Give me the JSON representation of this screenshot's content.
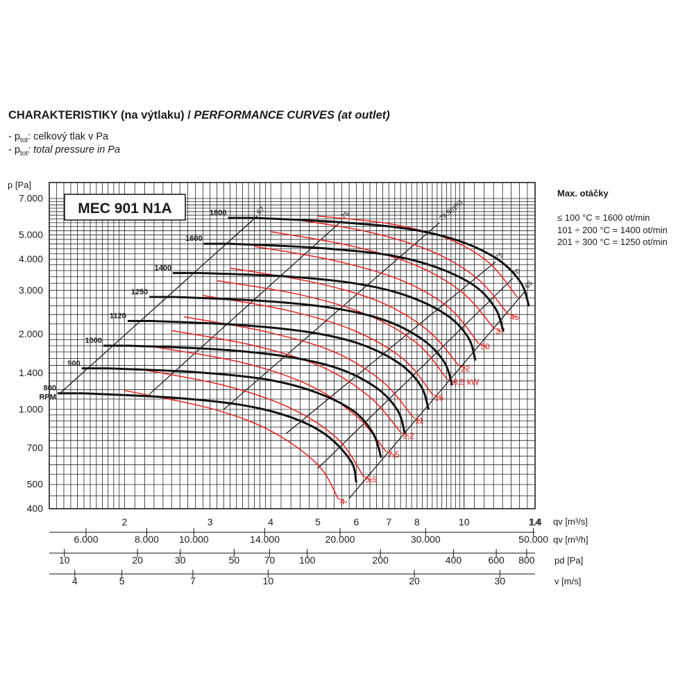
{
  "title": {
    "cz": "CHARAKTERISTIKY (na výtlaku) / ",
    "en": "PERFORMANCE CURVES (at outlet)"
  },
  "notes": [
    {
      "prefix": "- p",
      "sub": "tot",
      "text": ": celkový tlak v Pa",
      "italic": false
    },
    {
      "prefix": "- p",
      "sub": "tot",
      "text": ": total pressure in Pa",
      "italic": true
    }
  ],
  "max_speed": {
    "title": "Max. otáčky",
    "lines": [
      "≤ 100 °C = 1600 ot/min",
      "101 ÷ 200 °C = 1400 ot/min",
      "201 ÷ 300 °C = 1250 ot/min"
    ]
  },
  "model_label": "MEC 901 N1A",
  "chart_data": {
    "type": "line",
    "x_axis": {
      "label": "qv [m³/s]",
      "scale": "log",
      "range": [
        1.4,
        14
      ],
      "ticks": [
        "1.4",
        "2",
        "3",
        "4",
        "5",
        "6",
        "7",
        "8",
        "10",
        "14"
      ]
    },
    "y_axis": {
      "label": "ptot [Pa]",
      "scale": "log",
      "range": [
        400,
        7000
      ],
      "ticks": [
        "7.000",
        "5.000",
        "4.000",
        "3.000",
        "2.000",
        "1.400",
        "1.000",
        "700",
        "500",
        "400"
      ]
    },
    "secondary_axes": [
      {
        "label": "qv [m³/h]",
        "ticks": [
          "6.000",
          "8.000",
          "10.000",
          "14.000",
          "20.000",
          "30.000",
          "50.000"
        ]
      },
      {
        "label": "pd [Pa]",
        "ticks": [
          "10",
          "20",
          "30",
          "50",
          "70",
          "100",
          "200",
          "400",
          "600",
          "800"
        ]
      },
      {
        "label": "v [m/s]",
        "ticks": [
          "4",
          "5",
          "7",
          "10",
          "20",
          "30"
        ]
      }
    ],
    "speed_curves": [
      {
        "rpm": "800",
        "unit": "RPM",
        "points": [
          [
            1.65,
            1160
          ],
          [
            2.5,
            1115
          ],
          [
            3.5,
            1040
          ],
          [
            4.4,
            930
          ],
          [
            5.2,
            790
          ],
          [
            5.85,
            620
          ],
          [
            6.0,
            510
          ]
        ]
      },
      {
        "rpm": "900",
        "points": [
          [
            1.85,
            1460
          ],
          [
            2.8,
            1410
          ],
          [
            3.9,
            1320
          ],
          [
            4.9,
            1180
          ],
          [
            5.9,
            990
          ],
          [
            6.5,
            800
          ],
          [
            6.75,
            640
          ]
        ]
      },
      {
        "rpm": "1000",
        "points": [
          [
            2.05,
            1800
          ],
          [
            3.1,
            1740
          ],
          [
            4.3,
            1630
          ],
          [
            5.5,
            1460
          ],
          [
            6.6,
            1220
          ],
          [
            7.3,
            990
          ],
          [
            7.55,
            800
          ]
        ]
      },
      {
        "rpm": "1120",
        "points": [
          [
            2.3,
            2260
          ],
          [
            3.45,
            2180
          ],
          [
            4.8,
            2040
          ],
          [
            6.1,
            1830
          ],
          [
            7.35,
            1530
          ],
          [
            8.15,
            1240
          ],
          [
            8.45,
            1000
          ]
        ]
      },
      {
        "rpm": "1250",
        "points": [
          [
            2.55,
            2820
          ],
          [
            3.85,
            2720
          ],
          [
            5.35,
            2550
          ],
          [
            6.85,
            2280
          ],
          [
            8.2,
            1910
          ],
          [
            9.1,
            1550
          ],
          [
            9.45,
            1250
          ]
        ]
      },
      {
        "rpm": "1400",
        "points": [
          [
            2.85,
            3520
          ],
          [
            4.3,
            3410
          ],
          [
            6.0,
            3190
          ],
          [
            7.6,
            2860
          ],
          [
            9.2,
            2390
          ],
          [
            10.2,
            1940
          ],
          [
            10.55,
            1570
          ]
        ]
      },
      {
        "rpm": "1600",
        "points": [
          [
            3.3,
            4610
          ],
          [
            4.9,
            4450
          ],
          [
            6.9,
            4170
          ],
          [
            8.7,
            3730
          ],
          [
            10.5,
            3130
          ],
          [
            11.6,
            2540
          ],
          [
            12.05,
            2050
          ]
        ]
      },
      {
        "rpm": "1800",
        "points": [
          [
            3.7,
            5850
          ],
          [
            5.5,
            5630
          ],
          [
            7.7,
            5280
          ],
          [
            9.8,
            4720
          ],
          [
            11.8,
            3960
          ],
          [
            13.1,
            3210
          ],
          [
            13.6,
            2590
          ]
        ]
      }
    ],
    "power_curves": [
      {
        "label": "4",
        "points": [
          [
            2.0,
            1190
          ],
          [
            3.0,
            1010
          ],
          [
            4.0,
            820
          ],
          [
            5.0,
            600
          ],
          [
            5.5,
            440
          ]
        ]
      },
      {
        "label": "5,5",
        "points": [
          [
            2.1,
            1460
          ],
          [
            3.2,
            1250
          ],
          [
            4.4,
            1010
          ],
          [
            5.5,
            760
          ],
          [
            6.2,
            540
          ]
        ]
      },
      {
        "label": "7,5",
        "points": [
          [
            2.3,
            1780
          ],
          [
            3.5,
            1540
          ],
          [
            4.8,
            1250
          ],
          [
            6.0,
            940
          ],
          [
            6.9,
            680
          ]
        ]
      },
      {
        "label": "9,2",
        "points": [
          [
            2.5,
            2070
          ],
          [
            3.7,
            1800
          ],
          [
            5.1,
            1480
          ],
          [
            6.4,
            1120
          ],
          [
            7.4,
            810
          ]
        ]
      },
      {
        "label": "11",
        "points": [
          [
            2.65,
            2350
          ],
          [
            3.9,
            2050
          ],
          [
            5.4,
            1700
          ],
          [
            6.8,
            1290
          ],
          [
            7.85,
            930
          ]
        ]
      },
      {
        "label": "15",
        "points": [
          [
            2.9,
            2860
          ],
          [
            4.3,
            2500
          ],
          [
            5.9,
            2080
          ],
          [
            7.5,
            1590
          ],
          [
            8.6,
            1150
          ]
        ]
      },
      {
        "label": "18,5 kW",
        "points": [
          [
            3.1,
            3280
          ],
          [
            4.6,
            2880
          ],
          [
            6.3,
            2400
          ],
          [
            8.0,
            1840
          ],
          [
            9.2,
            1330
          ]
        ]
      },
      {
        "label": "22",
        "points": [
          [
            3.3,
            3680
          ],
          [
            4.9,
            3230
          ],
          [
            6.7,
            2700
          ],
          [
            8.4,
            2080
          ],
          [
            9.75,
            1500
          ]
        ]
      },
      {
        "label": "30",
        "points": [
          [
            3.7,
            4500
          ],
          [
            5.4,
            3950
          ],
          [
            7.4,
            3300
          ],
          [
            9.3,
            2560
          ],
          [
            10.7,
            1840
          ]
        ]
      },
      {
        "label": "37",
        "points": [
          [
            4.0,
            5150
          ],
          [
            5.8,
            4540
          ],
          [
            7.9,
            3800
          ],
          [
            9.9,
            2950
          ],
          [
            11.5,
            2120
          ]
        ]
      },
      {
        "label": "45",
        "points": [
          [
            4.4,
            5800
          ],
          [
            6.3,
            5160
          ],
          [
            8.5,
            4330
          ],
          [
            10.6,
            3370
          ],
          [
            12.3,
            2420
          ]
        ]
      },
      {
        "label": "",
        "points": [
          [
            5.0,
            5950
          ],
          [
            7.0,
            5550
          ],
          [
            9.2,
            4850
          ],
          [
            11.2,
            3900
          ],
          [
            12.9,
            2800
          ]
        ]
      }
    ],
    "efficiency_lines": [
      {
        "label": "67",
        "points": [
          [
            1.48,
            1170
          ],
          [
            3.75,
            5950
          ]
        ]
      },
      {
        "label": "75",
        "points": [
          [
            2.25,
            1150
          ],
          [
            5.6,
            5700
          ]
        ]
      },
      {
        "label": "79,9(η%)",
        "points": [
          [
            3.2,
            1000
          ],
          [
            8.9,
            5600
          ]
        ]
      },
      {
        "label": "75",
        "points": [
          [
            4.3,
            800
          ],
          [
            11.6,
            3900
          ]
        ]
      },
      {
        "label": "70",
        "points": [
          [
            5.0,
            580
          ],
          [
            12.6,
            3350
          ]
        ]
      },
      {
        "label": "65",
        "points": [
          [
            5.8,
            440
          ],
          [
            13.4,
            3000
          ]
        ]
      }
    ],
    "power_unit": "kW",
    "grid": true
  }
}
